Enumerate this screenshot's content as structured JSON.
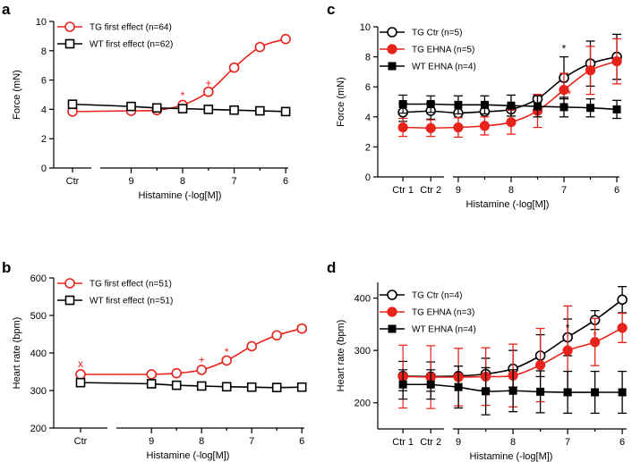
{
  "colors": {
    "tg": "#e8231b",
    "wt": "#000000"
  },
  "chart_data": [
    {
      "type": "line",
      "panel": "a",
      "xlabel": "Histamine (-log[M])",
      "ylabel": "Force (mN)",
      "xlim": [
        9.6,
        5.95
      ],
      "ylim": [
        0,
        10
      ],
      "yticks": [
        0,
        2,
        4,
        6,
        8,
        10
      ],
      "xticks": [
        {
          "v": 9,
          "t": "9"
        },
        {
          "v": 8,
          "t": "8"
        },
        {
          "v": 7,
          "t": "7"
        },
        {
          "v": 6,
          "t": "6"
        }
      ],
      "ctr": [
        {
          "t": "Ctr",
          "pos": 0.5
        }
      ],
      "series": [
        {
          "name": "TG first effect (n=64)",
          "color": "tg",
          "marker": "circle-open",
          "ctr": [
            3.85
          ],
          "x": [
            9,
            8.5,
            8,
            7.5,
            7,
            6.5,
            6
          ],
          "y": [
            3.9,
            3.95,
            4.3,
            5.2,
            6.85,
            8.25,
            8.8
          ],
          "err": [
            0,
            0,
            0,
            0,
            0,
            0,
            0
          ]
        },
        {
          "name": "WT first effect (n=62)",
          "color": "wt",
          "marker": "square-open",
          "ctr": [
            4.35
          ],
          "x": [
            9,
            8.5,
            8,
            7.5,
            7,
            6.5,
            6
          ],
          "y": [
            4.2,
            4.1,
            4.05,
            4.0,
            3.95,
            3.9,
            3.85
          ],
          "err": [
            0,
            0,
            0,
            0,
            0,
            0,
            0
          ]
        }
      ],
      "annotations": [
        {
          "text": "*",
          "x": 8,
          "y": 4.95,
          "color": "tg"
        },
        {
          "text": "+",
          "x": 7.5,
          "y": 5.8,
          "color": "tg"
        }
      ],
      "legend_position": "top-left"
    },
    {
      "type": "line",
      "panel": "b",
      "xlabel": "Histamine (-log[M])",
      "ylabel": "Heart rate (bpm)",
      "xlim": [
        9.7,
        5.95
      ],
      "ylim": [
        200,
        600
      ],
      "yticks": [
        200,
        300,
        400,
        500,
        600
      ],
      "xticks": [
        {
          "v": 9,
          "t": "9"
        },
        {
          "v": 8,
          "t": "8"
        },
        {
          "v": 7,
          "t": "7"
        },
        {
          "v": 6,
          "t": "6"
        }
      ],
      "ctr": [
        {
          "t": "Ctr",
          "pos": 0.5
        }
      ],
      "series": [
        {
          "name": "TG first effect (n=51)",
          "color": "tg",
          "marker": "circle-open",
          "ctr": [
            343
          ],
          "x": [
            9,
            8.5,
            8,
            7.5,
            7,
            6.5,
            6
          ],
          "y": [
            343,
            346,
            355,
            380,
            418,
            447,
            465
          ],
          "err": [
            0,
            0,
            0,
            0,
            0,
            0,
            8
          ]
        },
        {
          "name": "WT first effect (n=51)",
          "color": "wt",
          "marker": "square-open",
          "ctr": [
            321
          ],
          "x": [
            9,
            8.5,
            8,
            7.5,
            7,
            6.5,
            6
          ],
          "y": [
            318,
            314,
            312,
            310,
            309,
            308,
            309
          ],
          "err": [
            0,
            0,
            0,
            0,
            0,
            0,
            0
          ]
        }
      ],
      "annotations": [
        {
          "text": "x",
          "ctr": 0,
          "y": 372,
          "color": "tg"
        },
        {
          "text": "+",
          "x": 8,
          "y": 382,
          "color": "tg"
        },
        {
          "text": "*",
          "x": 7.5,
          "y": 402,
          "color": "tg"
        }
      ],
      "legend_position": "top-left"
    },
    {
      "type": "line",
      "panel": "c",
      "xlabel": "Histamine (-log[M])",
      "ylabel": "Force (mN)",
      "xlim": [
        9.1,
        5.95
      ],
      "ylim": [
        0,
        10
      ],
      "yticks": [
        0,
        2,
        4,
        6,
        8,
        10
      ],
      "xticks": [
        {
          "v": 9,
          "t": "9"
        },
        {
          "v": 8,
          "t": "8"
        },
        {
          "v": 7,
          "t": "7"
        },
        {
          "v": 6,
          "t": "6"
        }
      ],
      "ctr": [
        {
          "t": "Ctr 1",
          "pos": 0.38
        },
        {
          "t": "Ctr 2",
          "pos": 0.8
        }
      ],
      "series": [
        {
          "name": "TG Ctr (n=5)",
          "color": "wt",
          "marker": "circle-open",
          "ctr": [
            4.3,
            4.4
          ],
          "x": [
            9,
            8.5,
            8,
            7.5,
            7,
            6.5,
            6
          ],
          "y": [
            4.25,
            4.35,
            4.5,
            5.2,
            6.6,
            7.55,
            8.0
          ],
          "err": [
            0,
            0,
            0,
            0,
            1.4,
            1.5,
            1.5
          ]
        },
        {
          "name": "TG EHNA (n=5)",
          "color": "tg",
          "marker": "circle-filled",
          "ctr": [
            3.3,
            3.25
          ],
          "x": [
            9,
            8.5,
            8,
            7.5,
            7,
            6.5,
            6
          ],
          "y": [
            3.3,
            3.4,
            3.65,
            4.4,
            5.8,
            7.1,
            7.7
          ],
          "err": [
            0.65,
            0.6,
            0.8,
            1.1,
            1.1,
            1.6,
            1.5
          ]
        },
        {
          "name": "WT EHNA (n=4)",
          "color": "wt",
          "marker": "square-filled",
          "ctr": [
            4.85,
            4.85
          ],
          "x": [
            9,
            8.5,
            8,
            7.5,
            7,
            6.5,
            6
          ],
          "y": [
            4.8,
            4.8,
            4.75,
            4.7,
            4.65,
            4.6,
            4.5
          ],
          "err": [
            0.6,
            0.6,
            0.7,
            0.7,
            0.65,
            0.6,
            0.6
          ]
        }
      ],
      "annotations": [
        {
          "text": "*",
          "x": 7,
          "y": 8.55,
          "color": "wt"
        },
        {
          "text": "*",
          "x": 6.9,
          "y": 5.5,
          "color": "tg"
        }
      ],
      "legend_position": "top-left"
    },
    {
      "type": "line",
      "panel": "d",
      "xlabel": "Histamine (-log[M])",
      "ylabel": "Heart rate (bpm)",
      "xlim": [
        9.1,
        5.92
      ],
      "ylim": [
        150,
        430
      ],
      "yticks": [
        200,
        300,
        400
      ],
      "xticks": [
        {
          "v": 9,
          "t": "9"
        },
        {
          "v": 8,
          "t": "8"
        },
        {
          "v": 7,
          "t": "7"
        },
        {
          "v": 6,
          "t": "6"
        }
      ],
      "ctr": [
        {
          "t": "Ctr 1",
          "pos": 0.38
        },
        {
          "t": "Ctr 2",
          "pos": 0.8
        }
      ],
      "series": [
        {
          "name": "TG Ctr (n=4)",
          "color": "wt",
          "marker": "circle-open",
          "ctr": [
            251,
            250
          ],
          "x": [
            9,
            8.5,
            8,
            7.5,
            7,
            6.5,
            6
          ],
          "y": [
            251,
            255,
            265,
            290,
            325,
            358,
            397
          ],
          "err": [
            0,
            30,
            35,
            40,
            35,
            18,
            25
          ]
        },
        {
          "name": "TG EHNA (n=3)",
          "color": "tg",
          "marker": "circle-filled",
          "ctr": [
            250,
            249
          ],
          "x": [
            9,
            8.5,
            8,
            7.5,
            7,
            6.5,
            6
          ],
          "y": [
            249,
            250,
            252,
            272,
            300,
            316,
            343
          ],
          "err": [
            55,
            55,
            60,
            70,
            85,
            45,
            28
          ]
        },
        {
          "name": "WT EHNA (n=4)",
          "color": "wt",
          "marker": "square-filled",
          "ctr": [
            235,
            235
          ],
          "x": [
            9,
            8.5,
            8,
            7.5,
            7,
            6.5,
            6
          ],
          "y": [
            230,
            222,
            223,
            221,
            220,
            220,
            220
          ],
          "err": [
            40,
            45,
            40,
            40,
            40,
            40,
            40
          ]
        }
      ],
      "annotations": [
        {
          "text": "*",
          "x": 7,
          "y": 343,
          "color": "wt"
        },
        {
          "text": "*",
          "x": 6.5,
          "y": 328,
          "color": "tg"
        }
      ],
      "legend_position": "top-left"
    }
  ]
}
